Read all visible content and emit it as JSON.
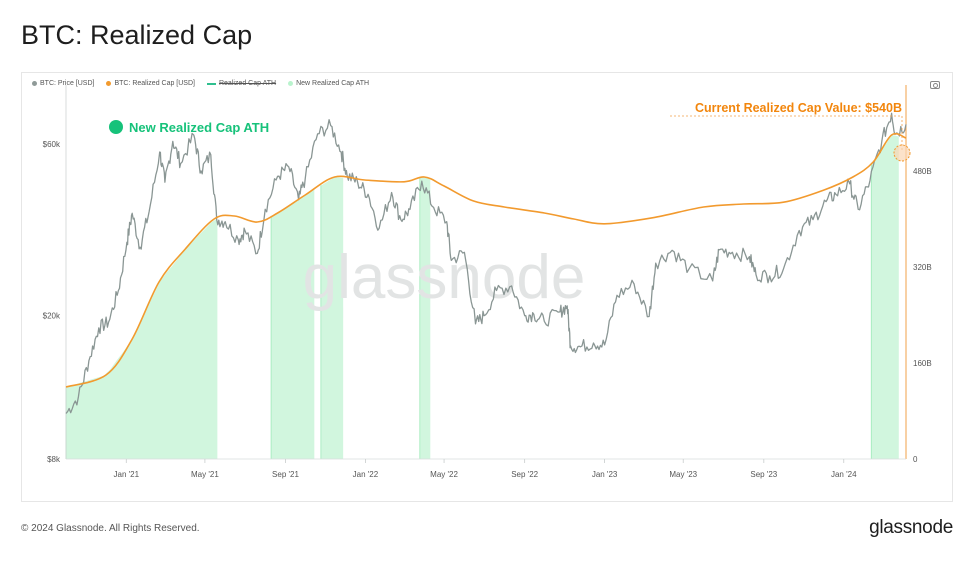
{
  "page": {
    "title": "BTC: Realized Cap",
    "footer_copyright": "© 2024 Glassnode. All Rights Reserved.",
    "footer_logo": "glassnode",
    "watermark": "glassnode"
  },
  "legend": [
    {
      "label": "BTC: Price [USD]",
      "color": "#8f9a98",
      "style": "dot"
    },
    {
      "label": "BTC: Realized Cap [USD]",
      "color": "#f29a2e",
      "style": "dot"
    },
    {
      "label": "Realized Cap ATH",
      "color": "#2fbf8f",
      "style": "strike"
    },
    {
      "label": "New Realized Cap ATH",
      "color": "#b9f3cd",
      "style": "dot"
    }
  ],
  "annotations": {
    "ath_label": "New Realized Cap ATH",
    "ath_color": "#16c27a",
    "current_value_label": "Current Realized Cap Value: $540B",
    "current_value_color": "#f2860d"
  },
  "colors": {
    "price": "#8a9694",
    "realized_cap": "#f29a2e",
    "ath_fill": "#c9f5d8",
    "ath_edge": "#9eeab9",
    "grid": "#eef0f0"
  },
  "chart_data": {
    "type": "line",
    "x_tick_labels": [
      "Jan '21",
      "May '21",
      "Sep '21",
      "Jan '22",
      "May '22",
      "Sep '22",
      "Jan '23",
      "May '23",
      "Sep '23",
      "Jan '24"
    ],
    "x_range": [
      "2020-10-01",
      "2024-04-05"
    ],
    "left_axis": {
      "label": "",
      "scale": "log",
      "ticks": [
        {
          "label": "$8k",
          "value": 8000
        },
        {
          "label": "$20k",
          "value": 20000
        },
        {
          "label": "$60k",
          "value": 60000
        }
      ],
      "range": [
        8000,
        80000
      ]
    },
    "right_axis": {
      "label": "",
      "scale": "linear",
      "ticks": [
        {
          "label": "0",
          "value": 0
        },
        {
          "label": "160B",
          "value": 160
        },
        {
          "label": "320B",
          "value": 320
        },
        {
          "label": "480B",
          "value": 480
        }
      ],
      "range": [
        0,
        600
      ]
    },
    "series": [
      {
        "name": "BTC: Price [USD]",
        "axis": "left",
        "x": [
          "2020-10-01",
          "2020-10-20",
          "2020-11-05",
          "2020-11-20",
          "2020-12-05",
          "2020-12-20",
          "2021-01-02",
          "2021-01-10",
          "2021-01-22",
          "2021-02-05",
          "2021-02-21",
          "2021-03-01",
          "2021-03-13",
          "2021-03-25",
          "2021-04-14",
          "2021-04-25",
          "2021-05-10",
          "2021-05-19",
          "2021-06-01",
          "2021-06-21",
          "2021-07-01",
          "2021-07-20",
          "2021-08-01",
          "2021-08-20",
          "2021-09-06",
          "2021-09-21",
          "2021-10-01",
          "2021-10-20",
          "2021-11-09",
          "2021-11-25",
          "2021-12-04",
          "2021-12-20",
          "2022-01-05",
          "2022-01-22",
          "2022-02-10",
          "2022-02-24",
          "2022-03-10",
          "2022-03-28",
          "2022-04-15",
          "2022-05-05",
          "2022-05-12",
          "2022-06-01",
          "2022-06-18",
          "2022-07-01",
          "2022-07-20",
          "2022-08-12",
          "2022-09-01",
          "2022-09-15",
          "2022-10-01",
          "2022-10-25",
          "2022-11-05",
          "2022-11-10",
          "2022-11-25",
          "2022-12-15",
          "2023-01-01",
          "2023-01-20",
          "2023-02-15",
          "2023-03-10",
          "2023-03-20",
          "2023-04-14",
          "2023-05-10",
          "2023-06-15",
          "2023-06-25",
          "2023-07-15",
          "2023-08-10",
          "2023-08-20",
          "2023-09-10",
          "2023-10-01",
          "2023-10-25",
          "2023-11-15",
          "2023-12-05",
          "2023-12-20",
          "2024-01-10",
          "2024-01-23",
          "2024-02-10",
          "2024-02-28",
          "2024-03-14",
          "2024-03-20",
          "2024-04-05"
        ],
        "values": [
          10700,
          11900,
          15000,
          18500,
          19200,
          23500,
          32000,
          38500,
          31000,
          39000,
          57000,
          47000,
          61000,
          53000,
          63500,
          50500,
          56000,
          37000,
          36500,
          32500,
          34500,
          29800,
          39500,
          48800,
          51800,
          42000,
          48000,
          64000,
          67500,
          57000,
          49000,
          47000,
          43500,
          35000,
          44000,
          37000,
          39500,
          47300,
          40000,
          36500,
          28500,
          30000,
          19000,
          20000,
          23500,
          24200,
          20000,
          20200,
          19300,
          20500,
          21300,
          16500,
          16400,
          16800,
          16600,
          22800,
          24500,
          19900,
          28000,
          30400,
          27000,
          25000,
          30500,
          30000,
          29200,
          26000,
          25800,
          27000,
          34500,
          37000,
          41500,
          43500,
          46500,
          39500,
          47500,
          61000,
          73000,
          64000,
          68000
        ]
      },
      {
        "name": "BTC: Realized Cap [USD]",
        "axis": "right",
        "x": [
          "2020-10-01",
          "2020-12-01",
          "2021-01-10",
          "2021-02-20",
          "2021-04-01",
          "2021-05-15",
          "2021-06-15",
          "2021-07-20",
          "2021-08-20",
          "2021-10-01",
          "2021-11-15",
          "2021-12-31",
          "2022-03-01",
          "2022-04-01",
          "2022-05-01",
          "2022-06-15",
          "2022-08-01",
          "2022-10-01",
          "2022-11-15",
          "2023-01-01",
          "2023-03-15",
          "2023-06-01",
          "2023-08-01",
          "2023-10-01",
          "2023-12-01",
          "2024-01-15",
          "2024-02-15",
          "2024-03-14",
          "2024-04-05"
        ],
        "values": [
          120,
          140,
          200,
          295,
          350,
          400,
          405,
          395,
          410,
          440,
          470,
          465,
          462,
          470,
          455,
          430,
          420,
          410,
          400,
          392,
          402,
          420,
          425,
          428,
          448,
          470,
          495,
          540,
          535
        ]
      }
    ],
    "new_ath_periods": [
      [
        "2020-10-01",
        "2021-05-20"
      ],
      [
        "2021-08-10",
        "2021-10-15"
      ],
      [
        "2021-10-25",
        "2021-11-28"
      ],
      [
        "2022-03-25",
        "2022-04-10"
      ],
      [
        "2024-02-12",
        "2024-03-25"
      ]
    ]
  }
}
